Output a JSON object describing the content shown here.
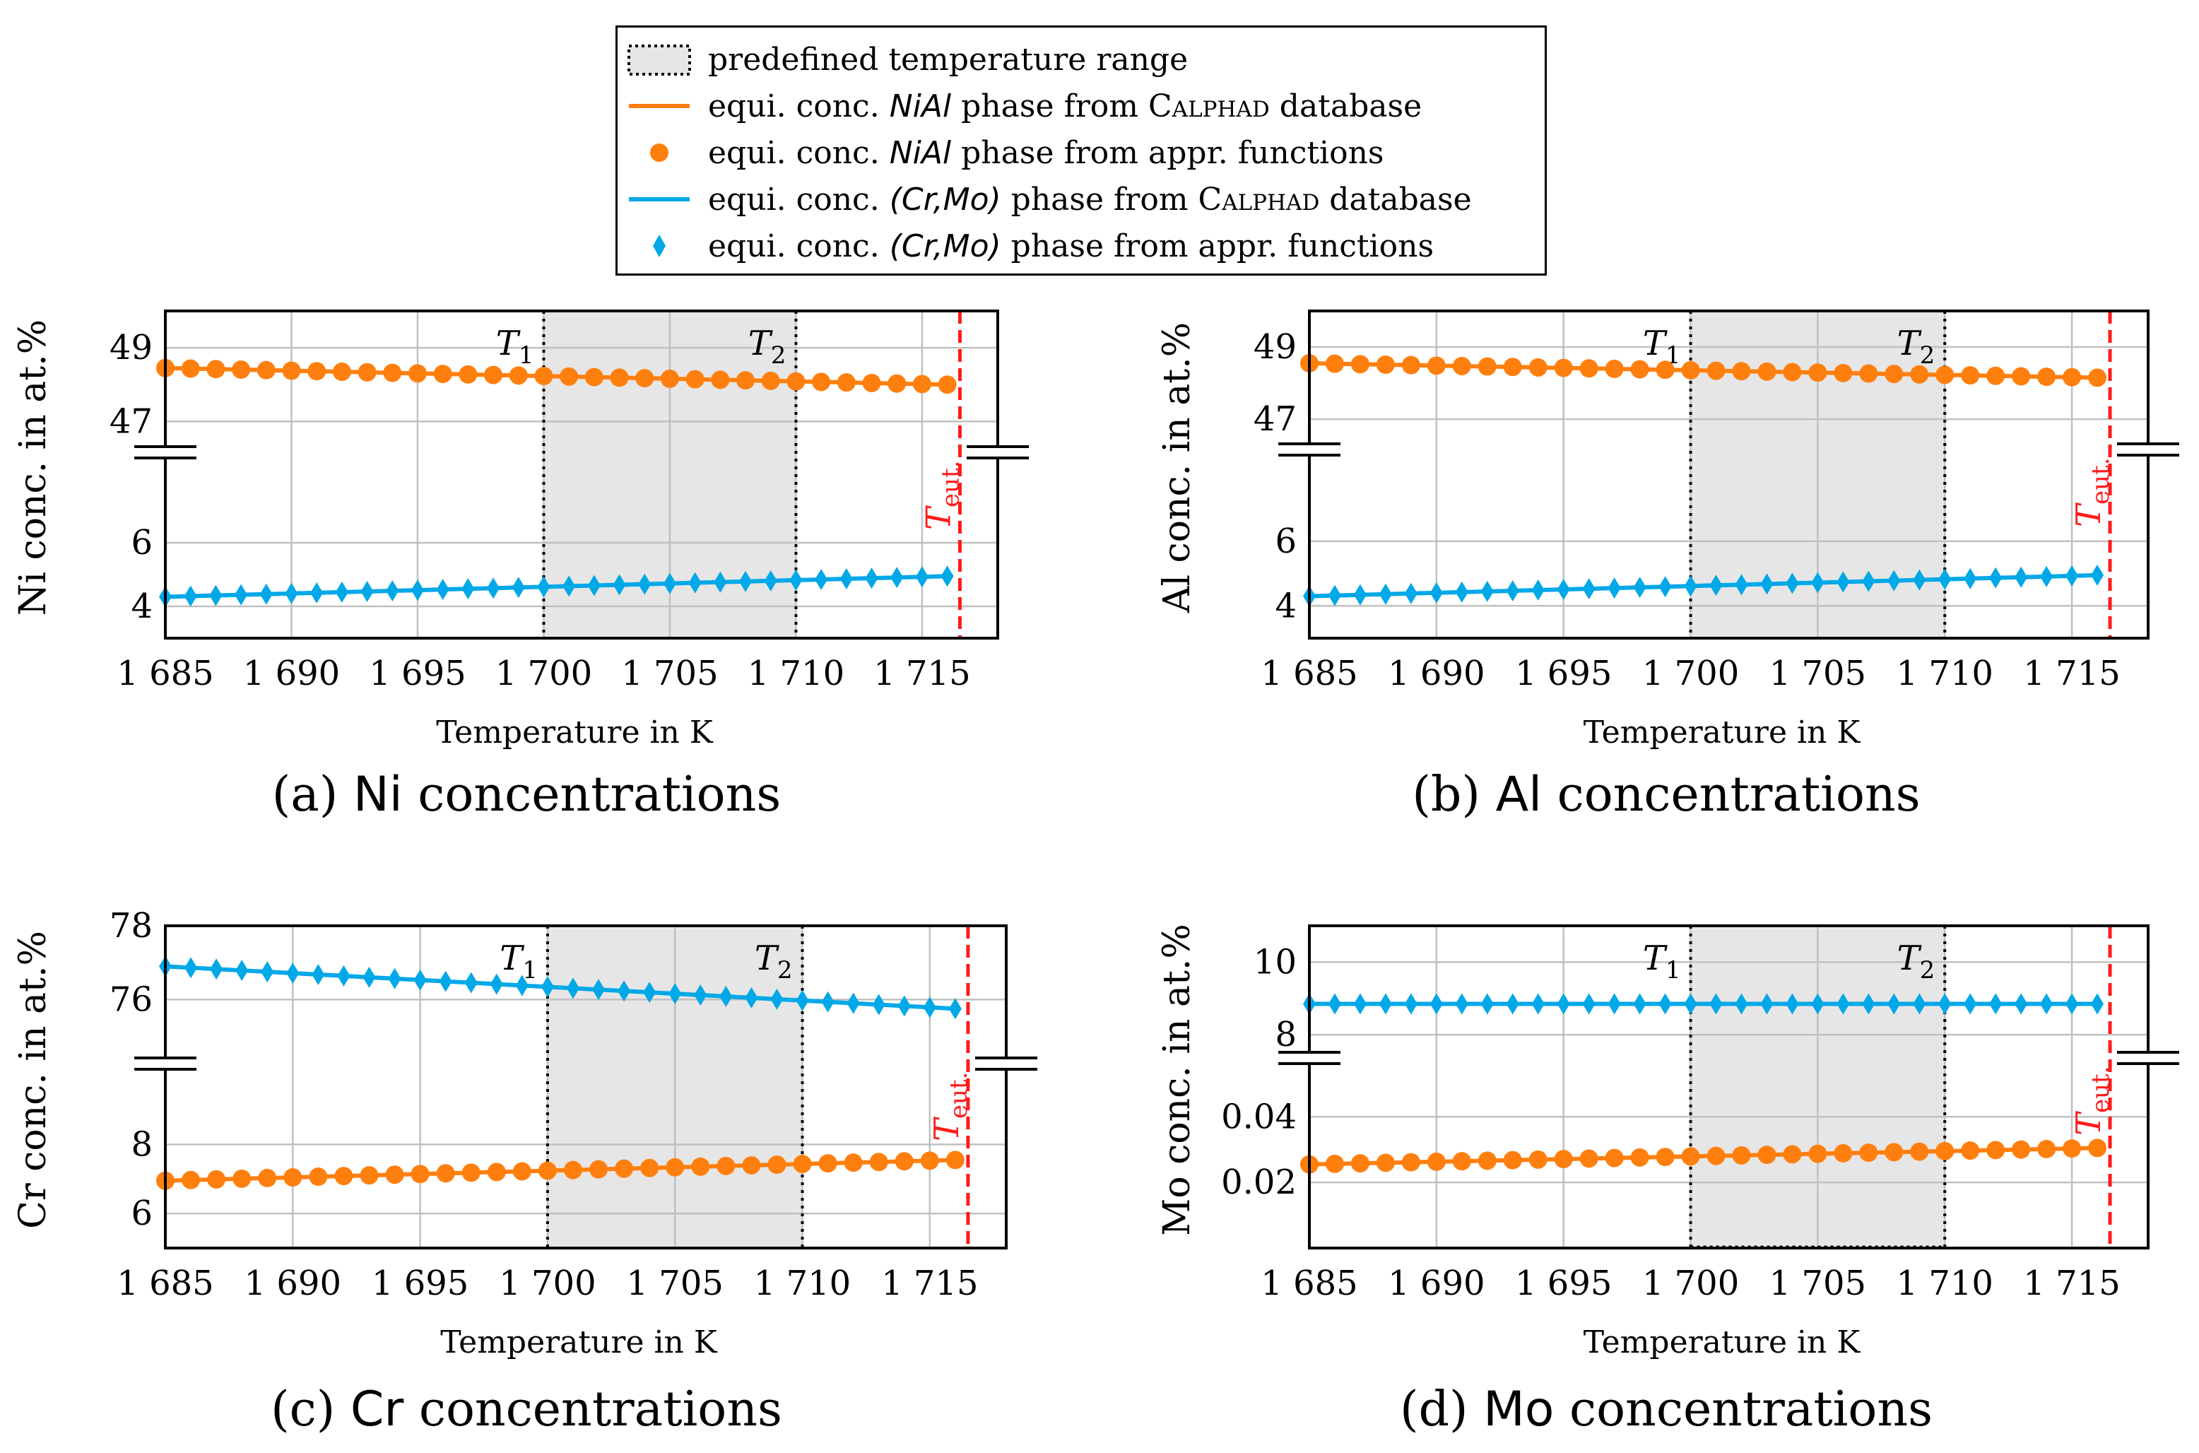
{
  "legend": {
    "items": [
      {
        "kind": "range",
        "parts": [
          {
            "t": "predefined temperature range",
            "s": ""
          }
        ]
      },
      {
        "kind": "line",
        "color": "#ff7f0e",
        "parts": [
          {
            "t": "equi. conc. ",
            "s": ""
          },
          {
            "t": "NiAl",
            "s": "it"
          },
          {
            "t": " phase from ",
            "s": ""
          },
          {
            "t": "Calphad",
            "s": "sc"
          },
          {
            "t": " database",
            "s": ""
          }
        ]
      },
      {
        "kind": "circle",
        "color": "#ff7f0e",
        "parts": [
          {
            "t": "equi. conc. ",
            "s": ""
          },
          {
            "t": "NiAl",
            "s": "it"
          },
          {
            "t": " phase from appr. functions",
            "s": ""
          }
        ]
      },
      {
        "kind": "line",
        "color": "#00a8e8",
        "parts": [
          {
            "t": "equi. conc. ",
            "s": ""
          },
          {
            "t": "(Cr,Mo)",
            "s": "it"
          },
          {
            "t": " phase from ",
            "s": ""
          },
          {
            "t": "Calphad",
            "s": "sc"
          },
          {
            "t": " database",
            "s": ""
          }
        ]
      },
      {
        "kind": "diamond",
        "color": "#00a8e8",
        "parts": [
          {
            "t": "equi. conc. ",
            "s": ""
          },
          {
            "t": "(Cr,Mo)",
            "s": "it"
          },
          {
            "t": " phase from appr. functions",
            "s": ""
          }
        ]
      }
    ]
  },
  "chart_data": [
    {
      "type": "line",
      "caption": {
        "prefix": "(a) ",
        "element": "Ni",
        "suffix": " concentrations"
      },
      "xlabel": "Temperature in K",
      "ylabel": "Ni conc. in at.%",
      "xlim": [
        1685,
        1718
      ],
      "xticks": [
        1685,
        1690,
        1695,
        1700,
        1705,
        1710,
        1715
      ],
      "xtick_labels": [
        "1 685",
        "1 690",
        "1 695",
        "1 700",
        "1 705",
        "1 710",
        "1 715"
      ],
      "broken_y_axis": true,
      "upper": {
        "ylim": [
          46.2,
          50
        ],
        "ticks": [
          47,
          49
        ],
        "tick_labels": [
          "47",
          "49"
        ]
      },
      "lower": {
        "ylim": [
          3,
          8.8
        ],
        "ticks": [
          4,
          6
        ],
        "tick_labels": [
          "4",
          "6"
        ]
      },
      "highlight_range": [
        1700,
        1710
      ],
      "annotations": {
        "T1": {
          "x": 1700,
          "label": "T",
          "sub": "1"
        },
        "T2": {
          "x": 1710,
          "label": "T",
          "sub": "2"
        },
        "Teut": {
          "x": 1716.5,
          "label": "T",
          "sub": "eut."
        }
      },
      "series": [
        {
          "name": "NiAl",
          "segment": "upper",
          "color": "#ff7f0e",
          "x_start": 1685,
          "x_end": 1716,
          "x_step": 1,
          "y_start": 48.45,
          "y_end": 48.0
        },
        {
          "name": "(Cr,Mo)",
          "segment": "lower",
          "color": "#00a8e8",
          "x_start": 1685,
          "x_end": 1716,
          "x_step": 1,
          "y_start": 4.3,
          "y_end": 4.95
        }
      ]
    },
    {
      "type": "line",
      "caption": {
        "prefix": "(b) ",
        "element": "Al",
        "suffix": " concentrations"
      },
      "xlabel": "Temperature in K",
      "ylabel": "Al conc. in at.%",
      "xlim": [
        1685,
        1718
      ],
      "xticks": [
        1685,
        1690,
        1695,
        1700,
        1705,
        1710,
        1715
      ],
      "xtick_labels": [
        "1 685",
        "1 690",
        "1 695",
        "1 700",
        "1 705",
        "1 710",
        "1 715"
      ],
      "broken_y_axis": true,
      "upper": {
        "ylim": [
          46.2,
          50
        ],
        "ticks": [
          47,
          49
        ],
        "tick_labels": [
          "47",
          "49"
        ]
      },
      "lower": {
        "ylim": [
          3,
          8.8
        ],
        "ticks": [
          4,
          6
        ],
        "tick_labels": [
          "4",
          "6"
        ]
      },
      "highlight_range": [
        1700,
        1710
      ],
      "annotations": {
        "T1": {
          "x": 1700,
          "label": "T",
          "sub": "1"
        },
        "T2": {
          "x": 1710,
          "label": "T",
          "sub": "2"
        },
        "Teut": {
          "x": 1716.5,
          "label": "T",
          "sub": "eut."
        }
      },
      "series": [
        {
          "name": "NiAl",
          "segment": "upper",
          "color": "#ff7f0e",
          "x_start": 1685,
          "x_end": 1716,
          "x_step": 1,
          "y_start": 48.55,
          "y_end": 48.15
        },
        {
          "name": "(Cr,Mo)",
          "segment": "lower",
          "color": "#00a8e8",
          "x_start": 1685,
          "x_end": 1716,
          "x_step": 1,
          "y_start": 4.3,
          "y_end": 4.95
        }
      ]
    },
    {
      "type": "line",
      "caption": {
        "prefix": "(c) ",
        "element": "Cr",
        "suffix": " concentrations"
      },
      "xlabel": "Temperature in K",
      "ylabel": "Cr conc. in at.%",
      "xlim": [
        1685,
        1718
      ],
      "xticks": [
        1685,
        1690,
        1695,
        1700,
        1705,
        1710,
        1715
      ],
      "xtick_labels": [
        "1 685",
        "1 690",
        "1 695",
        "1 700",
        "1 705",
        "1 710",
        "1 715"
      ],
      "broken_y_axis": true,
      "upper": {
        "ylim": [
          74.3,
          78
        ],
        "ticks": [
          76,
          78
        ],
        "tick_labels": [
          "76",
          "78"
        ]
      },
      "lower": {
        "ylim": [
          5,
          10.3
        ],
        "ticks": [
          6,
          8
        ],
        "tick_labels": [
          "6",
          "8"
        ]
      },
      "highlight_range": [
        1700,
        1710
      ],
      "annotations": {
        "T1": {
          "x": 1700,
          "label": "T",
          "sub": "1"
        },
        "T2": {
          "x": 1710,
          "label": "T",
          "sub": "2"
        },
        "Teut": {
          "x": 1716.5,
          "label": "T",
          "sub": "eut."
        }
      },
      "series": [
        {
          "name": "(Cr,Mo)",
          "segment": "upper",
          "color": "#00a8e8",
          "x_start": 1685,
          "x_end": 1716,
          "x_step": 1,
          "y_start": 76.9,
          "y_end": 75.75
        },
        {
          "name": "NiAl",
          "segment": "lower",
          "color": "#ff7f0e",
          "x_start": 1685,
          "x_end": 1716,
          "x_step": 1,
          "y_start": 6.95,
          "y_end": 7.55
        }
      ]
    },
    {
      "type": "line",
      "caption": {
        "prefix": "(d) ",
        "element": "Mo",
        "suffix": " concentrations"
      },
      "xlabel": "Temperature in K",
      "ylabel": "Mo conc. in at.%",
      "xlim": [
        1685,
        1718
      ],
      "xticks": [
        1685,
        1690,
        1695,
        1700,
        1705,
        1710,
        1715
      ],
      "xtick_labels": [
        "1 685",
        "1 690",
        "1 695",
        "1 700",
        "1 705",
        "1 710",
        "1 715"
      ],
      "broken_y_axis": true,
      "upper": {
        "ylim": [
          7.4,
          11
        ],
        "ticks": [
          8,
          10
        ],
        "tick_labels": [
          "8",
          "10"
        ]
      },
      "lower": {
        "ylim": [
          0,
          0.0575
        ],
        "ticks": [
          0.02,
          0.04
        ],
        "tick_labels": [
          "0.02",
          "0.04"
        ]
      },
      "highlight_range": [
        1700,
        1710
      ],
      "annotations": {
        "T1": {
          "x": 1700,
          "label": "T",
          "sub": "1"
        },
        "T2": {
          "x": 1710,
          "label": "T",
          "sub": "2"
        },
        "Teut": {
          "x": 1716.5,
          "label": "T",
          "sub": "eut."
        }
      },
      "series": [
        {
          "name": "(Cr,Mo)",
          "segment": "upper",
          "color": "#00a8e8",
          "x_start": 1685,
          "x_end": 1716,
          "x_step": 1,
          "y_start": 8.85,
          "y_end": 8.85
        },
        {
          "name": "NiAl",
          "segment": "lower",
          "color": "#ff7f0e",
          "x_start": 1685,
          "x_end": 1716,
          "x_step": 1,
          "y_start": 0.0255,
          "y_end": 0.0305
        }
      ]
    }
  ]
}
